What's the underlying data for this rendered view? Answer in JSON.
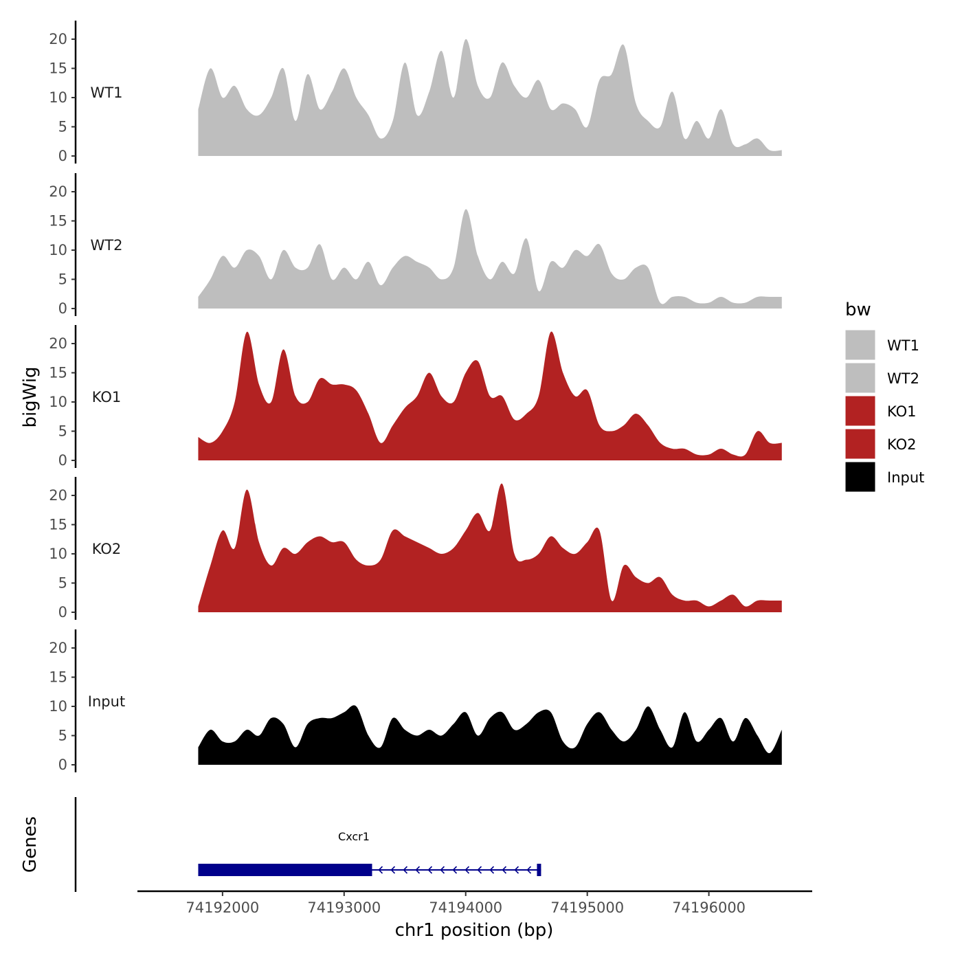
{
  "chart_data": {
    "type": "area",
    "title": "",
    "ylabel": "bigWig",
    "xlabel": "chr1 position (bp)",
    "ylim": [
      0,
      23
    ],
    "yticks": [
      0,
      5,
      10,
      15,
      20
    ],
    "xlim": [
      74191300,
      74196850
    ],
    "xticks": [
      74192000,
      74193000,
      74194000,
      74195000,
      74196000
    ],
    "xtick_labels": [
      "74192000",
      "74193000",
      "74194000",
      "74195000",
      "74196000"
    ],
    "genes_label": "Genes",
    "legend": {
      "title": "bw",
      "entries": [
        {
          "name": "WT1",
          "color": "#bebebe"
        },
        {
          "name": "WT2",
          "color": "#bebebe"
        },
        {
          "name": "KO1",
          "color": "#b22222"
        },
        {
          "name": "KO2",
          "color": "#b22222"
        },
        {
          "name": "Input",
          "color": "#000000"
        }
      ]
    },
    "x": [
      74191800,
      74191900,
      74192000,
      74192100,
      74192200,
      74192300,
      74192400,
      74192500,
      74192600,
      74192700,
      74192800,
      74192900,
      74193000,
      74193100,
      74193200,
      74193300,
      74193400,
      74193500,
      74193600,
      74193700,
      74193800,
      74193900,
      74194000,
      74194100,
      74194200,
      74194300,
      74194400,
      74194500,
      74194600,
      74194700,
      74194800,
      74194900,
      74195000,
      74195100,
      74195200,
      74195300,
      74195400,
      74195500,
      74195600,
      74195700,
      74195800,
      74195900,
      74196000,
      74196100,
      74196200,
      74196300,
      74196400,
      74196500,
      74196600
    ],
    "series": [
      {
        "name": "WT1",
        "color": "#bebebe",
        "label": "WT1",
        "values": [
          8,
          15,
          10,
          12,
          8,
          7,
          10,
          15,
          6,
          14,
          8,
          11,
          15,
          10,
          7,
          3,
          6,
          16,
          7,
          11,
          18,
          10,
          20,
          12,
          10,
          16,
          12,
          10,
          13,
          8,
          9,
          8,
          5,
          13,
          14,
          19,
          9,
          6,
          5,
          11,
          3,
          6,
          3,
          8,
          2,
          2,
          3,
          1,
          1
        ]
      },
      {
        "name": "WT2",
        "color": "#bebebe",
        "label": "WT2",
        "values": [
          2,
          5,
          9,
          7,
          10,
          9,
          5,
          10,
          7,
          7,
          11,
          5,
          7,
          5,
          8,
          4,
          7,
          9,
          8,
          7,
          5,
          7,
          17,
          9,
          5,
          8,
          6,
          12,
          3,
          8,
          7,
          10,
          9,
          11,
          6,
          5,
          7,
          7,
          1,
          2,
          2,
          1,
          1,
          2,
          1,
          1,
          2,
          2,
          2
        ]
      },
      {
        "name": "KO1",
        "color": "#b22222",
        "label": "KO1",
        "values": [
          4,
          3,
          5,
          10,
          22,
          13,
          10,
          19,
          11,
          10,
          14,
          13,
          13,
          12,
          8,
          3,
          6,
          9,
          11,
          15,
          11,
          10,
          15,
          17,
          11,
          11,
          7,
          8,
          11,
          22,
          15,
          11,
          12,
          6,
          5,
          6,
          8,
          6,
          3,
          2,
          2,
          1,
          1,
          2,
          1,
          1,
          5,
          3,
          3
        ]
      },
      {
        "name": "KO2",
        "color": "#b22222",
        "label": "KO2",
        "values": [
          1,
          8,
          14,
          11,
          21,
          12,
          8,
          11,
          10,
          12,
          13,
          12,
          12,
          9,
          8,
          9,
          14,
          13,
          12,
          11,
          10,
          11,
          14,
          17,
          14,
          22,
          10,
          9,
          10,
          13,
          11,
          10,
          12,
          14,
          2,
          8,
          6,
          5,
          6,
          3,
          2,
          2,
          1,
          2,
          3,
          1,
          2,
          2,
          2
        ]
      },
      {
        "name": "Input",
        "color": "#000000",
        "label": "Input",
        "values": [
          3,
          6,
          4,
          4,
          6,
          5,
          8,
          7,
          3,
          7,
          8,
          8,
          9,
          10,
          5,
          3,
          8,
          6,
          5,
          6,
          5,
          7,
          9,
          5,
          8,
          9,
          6,
          7,
          9,
          9,
          4,
          3,
          7,
          9,
          6,
          4,
          6,
          10,
          6,
          3,
          9,
          4,
          6,
          8,
          4,
          8,
          5,
          2,
          6
        ]
      }
    ],
    "genes": [
      {
        "name": "Cxcr1",
        "strand": "-",
        "start": 74191800,
        "end": 74194620,
        "cds_end": 74193230
      }
    ]
  }
}
